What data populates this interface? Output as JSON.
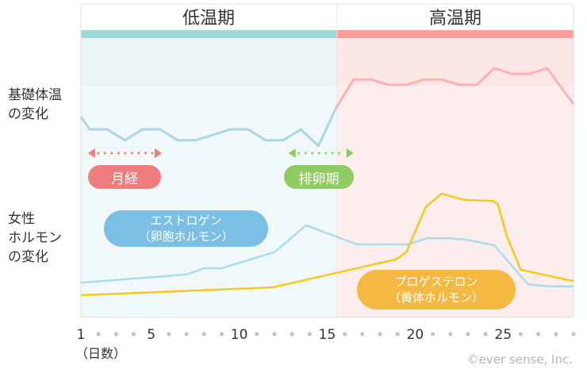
{
  "phases": {
    "low": "低温期",
    "high": "高温期"
  },
  "side_labels": {
    "temperature": [
      "基礎体温",
      "の変化"
    ],
    "hormone": [
      "女性",
      "ホルモン",
      "の変化"
    ]
  },
  "markers": {
    "menstruation": "月経",
    "ovulation": "排卵期"
  },
  "hormone_labels": {
    "estrogen": [
      "エストロゲン",
      "（卵胞ホルモン）"
    ],
    "progesterone": [
      "プロゲステロン",
      "（黄体ホルモン）"
    ]
  },
  "x_axis": {
    "unit_label": "（日数）",
    "tick_labels": [
      "1",
      "5",
      "10",
      "15",
      "20",
      "25"
    ],
    "days": 29
  },
  "copyright": "©ever sense, Inc.",
  "colors": {
    "low_phase": "#9bdad8",
    "high_phase": "#ff9a9a",
    "low_bg": "#f1f8f9",
    "high_bg": "#fdeeee",
    "temp_low_line": "#a8d8e6",
    "temp_high_line": "#ffb0b0",
    "estrogen_line": "#a9dcef",
    "progesterone_line": "#f8c81c",
    "menstruation": "#ef7d7d",
    "ovulation": "#8fcc63",
    "estrogen_label": "#7cbfe5",
    "progesterone_label": "#f5b943"
  },
  "chart_data": {
    "type": "line",
    "x_unit": "day",
    "y_scale": "relative level (0–100)",
    "phase_boundary_day": 15.5,
    "menstruation_days": [
      1.4,
      5.6
    ],
    "ovulation_days": [
      12.8,
      16.5
    ],
    "series": [
      {
        "key": "temperature",
        "points": [
          [
            1,
            64
          ],
          [
            1.5,
            60
          ],
          [
            2.5,
            60
          ],
          [
            3.5,
            56.5
          ],
          [
            4.5,
            60
          ],
          [
            5.5,
            60
          ],
          [
            6.5,
            56.5
          ],
          [
            7.5,
            56.5
          ],
          [
            8.5,
            58.2
          ],
          [
            9.5,
            60
          ],
          [
            10.5,
            60
          ],
          [
            11.5,
            56.5
          ],
          [
            12.5,
            56.5
          ],
          [
            13.5,
            60
          ],
          [
            14.5,
            54.7
          ],
          [
            15.5,
            66.8
          ],
          [
            16.5,
            75.9
          ],
          [
            17.5,
            75.9
          ],
          [
            18.5,
            74.2
          ],
          [
            19.5,
            74.2
          ],
          [
            20.5,
            75.9
          ],
          [
            21.5,
            75.9
          ],
          [
            22.5,
            74.2
          ],
          [
            23.5,
            74.2
          ],
          [
            24.5,
            79.5
          ],
          [
            25.5,
            77.7
          ],
          [
            26.5,
            77.7
          ],
          [
            27.5,
            79.5
          ],
          [
            29,
            68.1
          ]
        ]
      },
      {
        "key": "estrogen",
        "points": [
          [
            1,
            11.1
          ],
          [
            7,
            13.7
          ],
          [
            8,
            15.7
          ],
          [
            9,
            15.7
          ],
          [
            12,
            20.8
          ],
          [
            13.8,
            29.4
          ],
          [
            16.7,
            23.3
          ],
          [
            19.6,
            23.3
          ],
          [
            20.7,
            25.3
          ],
          [
            21.9,
            25.3
          ],
          [
            22.9,
            24.8
          ],
          [
            24.5,
            23.0
          ],
          [
            26.4,
            10.6
          ],
          [
            27.6,
            9.9
          ],
          [
            29,
            9.9
          ]
        ]
      },
      {
        "key": "progesterone",
        "points": [
          [
            1,
            7.1
          ],
          [
            11.9,
            9.6
          ],
          [
            18.9,
            18.5
          ],
          [
            19.5,
            20.8
          ],
          [
            20.6,
            35.2
          ],
          [
            21.5,
            39.5
          ],
          [
            22.8,
            37.5
          ],
          [
            24.4,
            37.2
          ],
          [
            24.7,
            36.2
          ],
          [
            25.2,
            26.1
          ],
          [
            26,
            15.2
          ],
          [
            29,
            11.6
          ]
        ]
      }
    ]
  }
}
